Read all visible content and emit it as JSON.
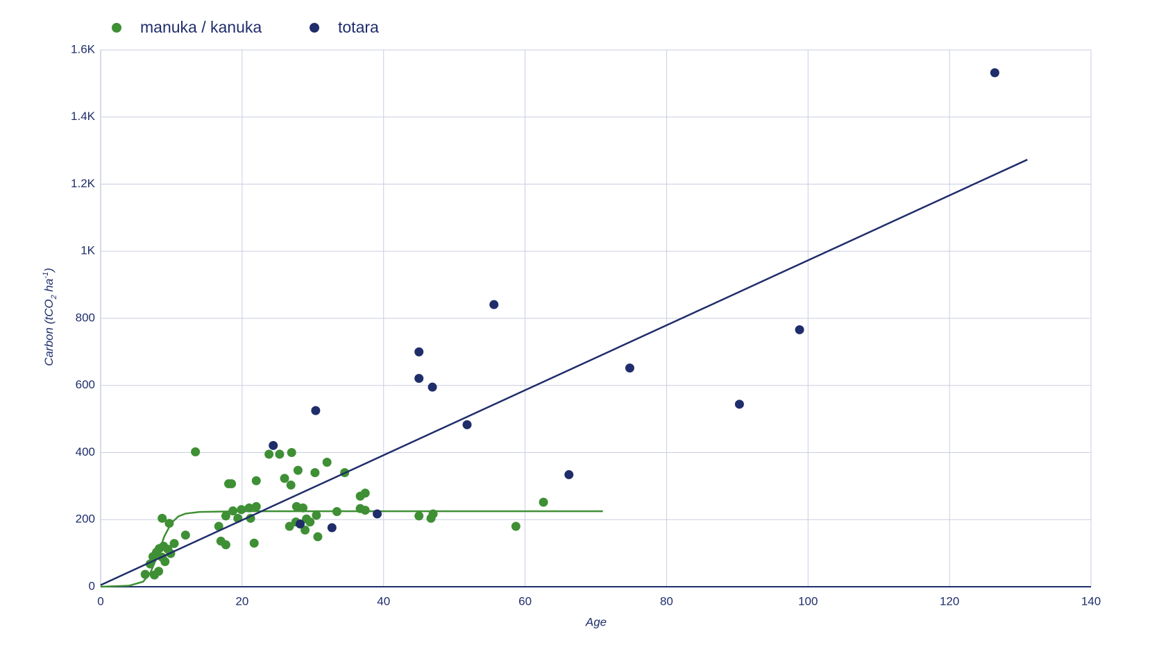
{
  "chart_data": {
    "type": "scatter",
    "x_label": "Age",
    "y_label": [
      "Carbon (tCO",
      "2",
      " ha",
      "-1",
      ")"
    ],
    "xlim": [
      0,
      140
    ],
    "xticks": [
      0,
      20,
      40,
      60,
      80,
      100,
      120,
      140
    ],
    "ylim": [
      0,
      1600
    ],
    "yticks": [
      0,
      200,
      400,
      600,
      800,
      {
        "value": 1000,
        "label": "1K"
      },
      {
        "value": 1200,
        "label": "1.2K"
      },
      {
        "value": 1400,
        "label": "1.4K"
      },
      {
        "value": 1600,
        "label": "1.6K"
      }
    ],
    "grid": true,
    "legend": "top-left",
    "series": [
      {
        "name": "manuka / kanuka",
        "color": "#3f8f35",
        "x": [
          6.3,
          7.6,
          8.2,
          7.0,
          7.4,
          7.9,
          8.7,
          9.1,
          8.3,
          8.9,
          9.5,
          9.9,
          10.4,
          8.7,
          9.7,
          12.0,
          13.4,
          16.7,
          17.0,
          17.7,
          17.7,
          18.7,
          18.1,
          18.5,
          19.4,
          19.9,
          21.0,
          21.2,
          22.0,
          21.7,
          22.0,
          23.8,
          25.3,
          27.0,
          26.0,
          26.9,
          26.7,
          27.6,
          27.7,
          28.6,
          27.9,
          28.9,
          29.1,
          29.6,
          30.3,
          30.5,
          30.7,
          32.0,
          33.4,
          34.5,
          36.7,
          37.4,
          36.7,
          37.4,
          45.0,
          46.7,
          47.0,
          58.7,
          62.6
        ],
        "values": [
          37,
          35,
          46,
          68,
          90,
          103,
          88,
          75,
          114,
          121,
          112,
          99,
          129,
          204,
          189,
          154,
          402,
          180,
          136,
          125,
          211,
          226,
          307,
          307,
          204,
          230,
          235,
          204,
          239,
          130,
          316,
          395,
          395,
          400,
          323,
          303,
          180,
          193,
          239,
          235,
          347,
          169,
          202,
          193,
          340,
          213,
          149,
          371,
          224,
          340,
          270,
          279,
          233,
          228,
          211,
          204,
          217,
          180,
          252
        ],
        "fit": {
          "x": [
            0,
            4,
            6,
            7,
            8,
            9,
            10,
            11,
            12,
            14,
            20,
            71
          ],
          "values": [
            0,
            3,
            15,
            40,
            90,
            150,
            190,
            210,
            218,
            223,
            225,
            225
          ]
        }
      },
      {
        "name": "totara",
        "color": "#1f2d6b",
        "x": [
          24.4,
          28.2,
          30.4,
          32.7,
          39.1,
          45.0,
          45.0,
          46.9,
          51.8,
          55.6,
          66.2,
          74.8,
          90.3,
          98.8,
          126.4
        ],
        "values": [
          421,
          187,
          525,
          176,
          217,
          700,
          621,
          595,
          483,
          841,
          334,
          652,
          544,
          766,
          1532
        ],
        "fit": {
          "x": [
            0,
            131
          ],
          "values": [
            5,
            1273
          ]
        }
      }
    ]
  }
}
